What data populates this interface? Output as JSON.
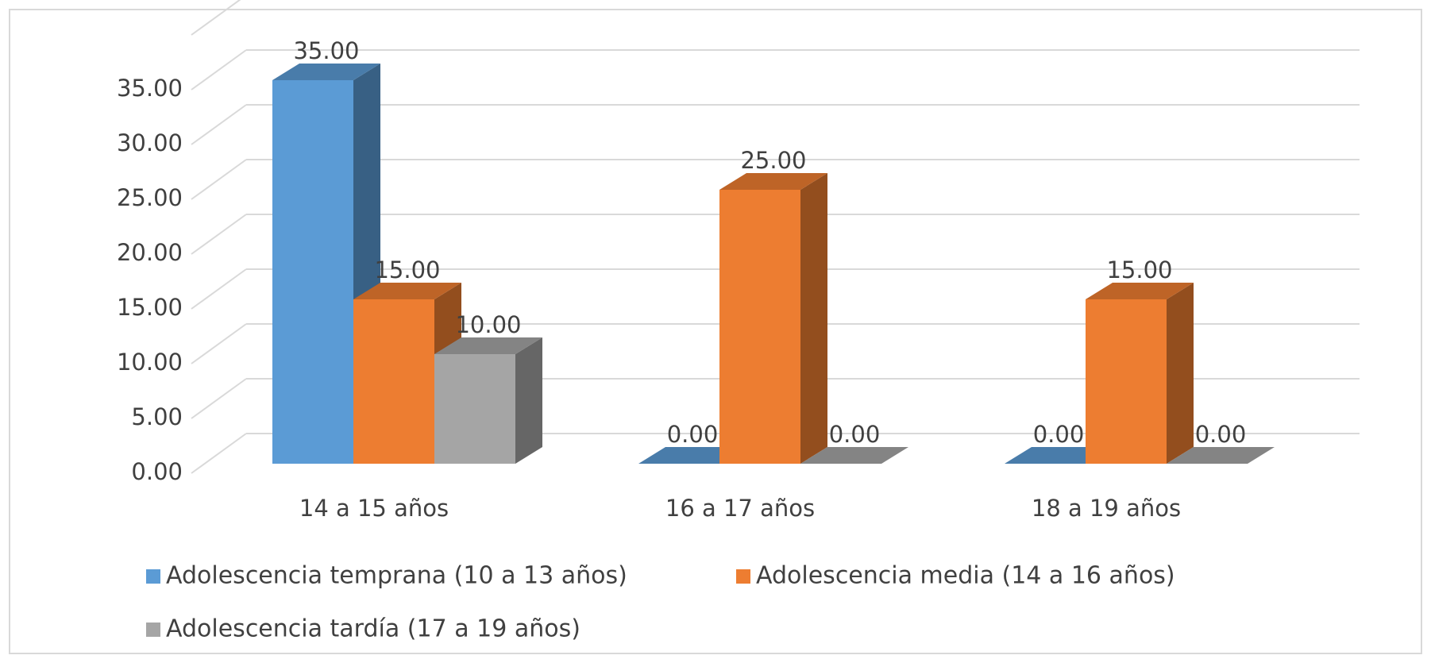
{
  "chart_data": {
    "type": "bar3d",
    "categories": [
      "14 a 15 años",
      "16 a 17 años",
      "18 a 19 años"
    ],
    "series": [
      {
        "name": "Adolescencia temprana (10 a 13 años)",
        "color": "#5b9bd5",
        "values": [
          35,
          0,
          0
        ],
        "value_labels": [
          "35.00",
          "0.00",
          "0.00"
        ]
      },
      {
        "name": "Adolescencia media (14 a 16 años)",
        "color": "#ed7d31",
        "values": [
          15,
          25,
          15
        ],
        "value_labels": [
          "15.00",
          "25.00",
          "15.00"
        ]
      },
      {
        "name": "Adolescencia tardía (17 a 19 años)",
        "color": "#a5a5a5",
        "values": [
          10,
          0,
          0
        ],
        "value_labels": [
          "10.00",
          "0.00",
          "0.00"
        ]
      }
    ],
    "ylim": [
      0,
      35
    ],
    "yticks": [
      {
        "value": 0,
        "label": "0.00"
      },
      {
        "value": 5,
        "label": "5.00"
      },
      {
        "value": 10,
        "label": "10.00"
      },
      {
        "value": 15,
        "label": "15.00"
      },
      {
        "value": 20,
        "label": "20.00"
      },
      {
        "value": 25,
        "label": "25.00"
      },
      {
        "value": 30,
        "label": "30.00"
      },
      {
        "value": 35,
        "label": "35.00"
      }
    ],
    "grid": true,
    "legend": "bottom"
  }
}
